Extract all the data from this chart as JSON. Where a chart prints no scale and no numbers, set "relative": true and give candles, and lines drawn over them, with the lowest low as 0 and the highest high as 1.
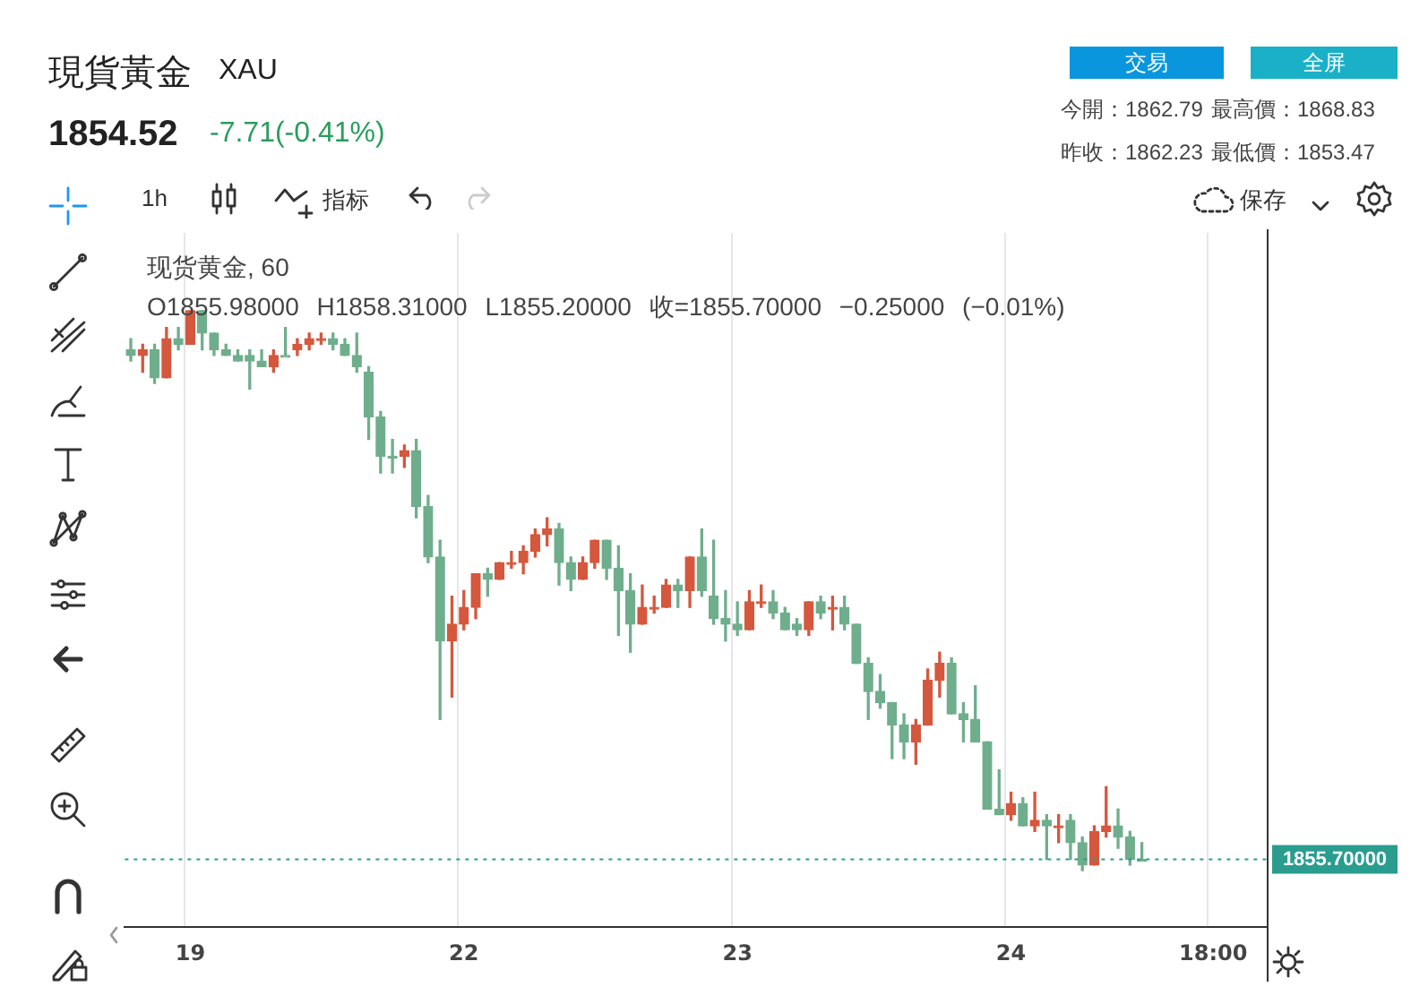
{
  "chart_data": {
    "type": "candlestick",
    "title": "現貨黃金",
    "subtitle": "XAU",
    "relative": true,
    "grid": "x",
    "legend": false,
    "annotations": [
      "1854.52",
      "-7.71(-0.41%)",
      "今開：1862.79",
      "最高價：1868.83",
      "昨收：1862.23",
      "最低價：1853.47",
      "交易",
      "全屏",
      "1h",
      "指标",
      "保存",
      "现货黄金, 60",
      "O1855.98000 H1858.31000 L1855.20000 收=1855.70000 −0.25000 (−0.01%)",
      "1855.70000"
    ],
    "ref_lines": [
      {
        "axis": "y",
        "value": 0.02,
        "color": "#2a9d8f",
        "line_style": "dotted"
      }
    ],
    "categories": [
      null,
      null,
      null,
      null,
      null,
      "19",
      null,
      null,
      null,
      null,
      null,
      null,
      null,
      null,
      null,
      null,
      null,
      null,
      null,
      null,
      null,
      null,
      null,
      null,
      null,
      null,
      null,
      null,
      "22",
      null,
      null,
      null,
      null,
      null,
      null,
      null,
      null,
      null,
      null,
      null,
      null,
      null,
      null,
      null,
      null,
      null,
      null,
      null,
      null,
      null,
      null,
      "23",
      null,
      null,
      null,
      null,
      null,
      null,
      null,
      null,
      null,
      null,
      null,
      null,
      null,
      null,
      null,
      null,
      null,
      null,
      null,
      null,
      null,
      null,
      "24",
      null,
      null,
      null,
      null,
      null,
      null,
      null,
      null,
      null,
      null,
      null,
      null,
      null,
      null,
      null,
      null,
      "18:00",
      null,
      null,
      null,
      null
    ],
    "ohlc": [
      [
        0.93,
        0.95,
        0.91,
        0.92
      ],
      [
        0.92,
        0.94,
        0.89,
        0.93
      ],
      [
        0.93,
        0.94,
        0.87,
        0.88
      ],
      [
        0.88,
        0.97,
        0.88,
        0.95
      ],
      [
        0.95,
        0.97,
        0.93,
        0.94
      ],
      [
        0.94,
        1.0,
        0.94,
        1.0
      ],
      [
        1.0,
        1.0,
        0.93,
        0.96
      ],
      [
        0.96,
        0.96,
        0.92,
        0.93
      ],
      [
        0.93,
        0.94,
        0.92,
        0.92
      ],
      [
        0.92,
        0.93,
        0.91,
        0.91
      ],
      [
        0.92,
        0.93,
        0.86,
        0.91
      ],
      [
        0.91,
        0.93,
        0.9,
        0.9
      ],
      [
        0.9,
        0.93,
        0.89,
        0.92
      ],
      [
        0.92,
        0.97,
        0.92,
        0.92
      ],
      [
        0.93,
        0.95,
        0.92,
        0.94
      ],
      [
        0.94,
        0.96,
        0.93,
        0.95
      ],
      [
        0.95,
        0.96,
        0.94,
        0.95
      ],
      [
        0.95,
        0.96,
        0.93,
        0.94
      ],
      [
        0.94,
        0.95,
        0.92,
        0.92
      ],
      [
        0.92,
        0.96,
        0.89,
        0.9
      ],
      [
        0.89,
        0.9,
        0.77,
        0.81
      ],
      [
        0.81,
        0.82,
        0.71,
        0.74
      ],
      [
        0.74,
        0.77,
        0.71,
        0.74
      ],
      [
        0.74,
        0.76,
        0.72,
        0.75
      ],
      [
        0.75,
        0.77,
        0.63,
        0.65
      ],
      [
        0.65,
        0.67,
        0.55,
        0.56
      ],
      [
        0.56,
        0.59,
        0.27,
        0.41
      ],
      [
        0.41,
        0.49,
        0.31,
        0.44
      ],
      [
        0.44,
        0.5,
        0.43,
        0.47
      ],
      [
        0.47,
        0.53,
        0.45,
        0.53
      ],
      [
        0.53,
        0.54,
        0.49,
        0.52
      ],
      [
        0.52,
        0.55,
        0.52,
        0.55
      ],
      [
        0.55,
        0.57,
        0.54,
        0.55
      ],
      [
        0.55,
        0.58,
        0.53,
        0.57
      ],
      [
        0.57,
        0.61,
        0.56,
        0.6
      ],
      [
        0.6,
        0.63,
        0.58,
        0.61
      ],
      [
        0.61,
        0.62,
        0.51,
        0.55
      ],
      [
        0.55,
        0.56,
        0.5,
        0.52
      ],
      [
        0.52,
        0.56,
        0.52,
        0.55
      ],
      [
        0.55,
        0.59,
        0.54,
        0.59
      ],
      [
        0.59,
        0.59,
        0.52,
        0.54
      ],
      [
        0.54,
        0.58,
        0.42,
        0.5
      ],
      [
        0.5,
        0.53,
        0.39,
        0.44
      ],
      [
        0.44,
        0.51,
        0.44,
        0.47
      ],
      [
        0.47,
        0.49,
        0.46,
        0.47
      ],
      [
        0.47,
        0.52,
        0.47,
        0.51
      ],
      [
        0.51,
        0.52,
        0.47,
        0.5
      ],
      [
        0.5,
        0.56,
        0.47,
        0.56
      ],
      [
        0.56,
        0.61,
        0.49,
        0.5
      ],
      [
        0.49,
        0.59,
        0.44,
        0.45
      ],
      [
        0.45,
        0.5,
        0.41,
        0.44
      ],
      [
        0.44,
        0.48,
        0.42,
        0.43
      ],
      [
        0.43,
        0.5,
        0.43,
        0.48
      ],
      [
        0.48,
        0.51,
        0.47,
        0.48
      ],
      [
        0.48,
        0.5,
        0.45,
        0.46
      ],
      [
        0.46,
        0.47,
        0.43,
        0.43
      ],
      [
        0.44,
        0.45,
        0.42,
        0.43
      ],
      [
        0.43,
        0.48,
        0.42,
        0.48
      ],
      [
        0.48,
        0.49,
        0.45,
        0.46
      ],
      [
        0.47,
        0.49,
        0.43,
        0.47
      ],
      [
        0.47,
        0.49,
        0.43,
        0.44
      ],
      [
        0.44,
        0.44,
        0.37,
        0.37
      ],
      [
        0.37,
        0.38,
        0.27,
        0.32
      ],
      [
        0.32,
        0.35,
        0.29,
        0.3
      ],
      [
        0.3,
        0.3,
        0.2,
        0.26
      ],
      [
        0.26,
        0.28,
        0.2,
        0.23
      ],
      [
        0.23,
        0.27,
        0.19,
        0.26
      ],
      [
        0.26,
        0.36,
        0.26,
        0.34
      ],
      [
        0.34,
        0.39,
        0.31,
        0.37
      ],
      [
        0.37,
        0.38,
        0.28,
        0.28
      ],
      [
        0.28,
        0.3,
        0.23,
        0.27
      ],
      [
        0.27,
        0.33,
        0.23,
        0.23
      ],
      [
        0.23,
        0.23,
        0.11,
        0.11
      ],
      [
        0.11,
        0.18,
        0.1,
        0.1
      ],
      [
        0.1,
        0.14,
        0.09,
        0.12
      ],
      [
        0.12,
        0.13,
        0.08,
        0.08
      ],
      [
        0.08,
        0.14,
        0.07,
        0.09
      ],
      [
        0.09,
        0.1,
        0.02,
        0.08
      ],
      [
        0.08,
        0.1,
        0.05,
        0.08
      ],
      [
        0.09,
        0.1,
        0.02,
        0.05
      ],
      [
        0.05,
        0.06,
        0.0,
        0.01
      ],
      [
        0.01,
        0.08,
        0.01,
        0.07
      ],
      [
        0.07,
        0.15,
        0.06,
        0.08
      ],
      [
        0.08,
        0.11,
        0.04,
        0.06
      ],
      [
        0.06,
        0.07,
        0.01,
        0.02
      ],
      [
        0.02,
        0.05,
        0.02,
        0.02
      ],
      null,
      null,
      null,
      null,
      null,
      null,
      null,
      null,
      null,
      null
    ],
    "colors": [
      "#6fae8c",
      "#d5573d",
      "#6fae8c",
      "#d5573d",
      "#6fae8c",
      "#d5573d",
      "#6fae8c",
      "#6fae8c",
      "#6fae8c",
      "#6fae8c",
      "#6fae8c",
      "#6fae8c",
      "#d5573d",
      "#6fae8c",
      "#d5573d",
      "#d5573d",
      "#d5573d",
      "#6fae8c",
      "#6fae8c",
      "#6fae8c",
      "#6fae8c",
      "#6fae8c",
      "#6fae8c",
      "#d5573d",
      "#6fae8c",
      "#6fae8c",
      "#6fae8c",
      "#d5573d",
      "#d5573d",
      "#d5573d",
      "#6fae8c",
      "#d5573d",
      "#d5573d",
      "#d5573d",
      "#d5573d",
      "#d5573d",
      "#6fae8c",
      "#6fae8c",
      "#d5573d",
      "#d5573d",
      "#6fae8c",
      "#6fae8c",
      "#6fae8c",
      "#d5573d",
      "#d5573d",
      "#d5573d",
      "#6fae8c",
      "#d5573d",
      "#6fae8c",
      "#6fae8c",
      "#6fae8c",
      "#6fae8c",
      "#d5573d",
      "#d5573d",
      "#6fae8c",
      "#6fae8c",
      "#6fae8c",
      "#d5573d",
      "#6fae8c",
      "#d5573d",
      "#6fae8c",
      "#6fae8c",
      "#6fae8c",
      "#6fae8c",
      "#6fae8c",
      "#6fae8c",
      "#d5573d",
      "#d5573d",
      "#d5573d",
      "#6fae8c",
      "#6fae8c",
      "#6fae8c",
      "#6fae8c",
      "#6fae8c",
      "#d5573d",
      "#6fae8c",
      "#d5573d",
      "#6fae8c",
      "#d5573d",
      "#6fae8c",
      "#6fae8c",
      "#d5573d",
      "#d5573d",
      "#6fae8c",
      "#6fae8c",
      "#6fae8c",
      null,
      null,
      null,
      null,
      null,
      null,
      null,
      null,
      null,
      null
    ]
  }
}
